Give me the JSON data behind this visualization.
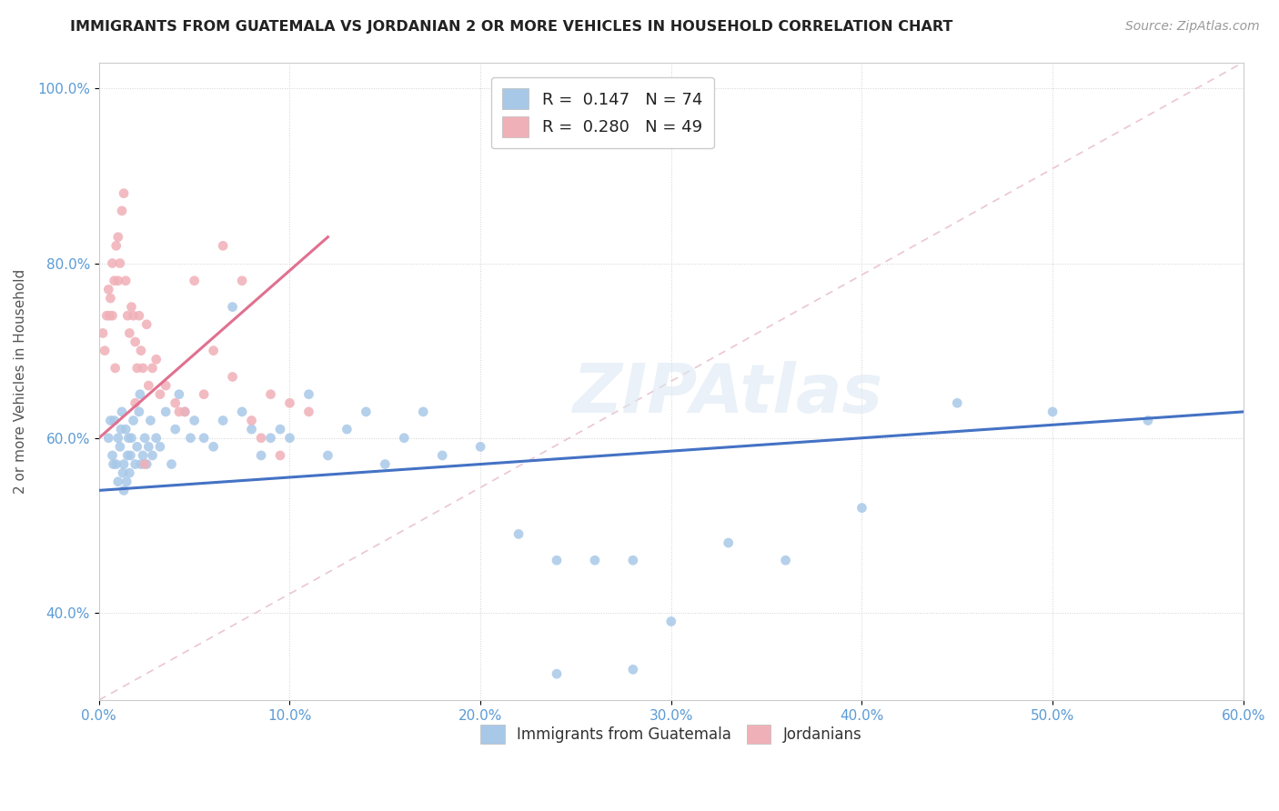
{
  "title": "IMMIGRANTS FROM GUATEMALA VS JORDANIAN 2 OR MORE VEHICLES IN HOUSEHOLD CORRELATION CHART",
  "source": "Source: ZipAtlas.com",
  "ylabel": "2 or more Vehicles in Household",
  "legend_label1": "Immigrants from Guatemala",
  "legend_label2": "Jordanians",
  "legend_R1": "R =  0.147",
  "legend_N1": "N = 74",
  "legend_R2": "R =  0.280",
  "legend_N2": "N = 49",
  "blue_color": "#a8c8e8",
  "pink_color": "#f0b0b8",
  "line_blue": "#4472c4",
  "line_pink": "#e07090",
  "line_diagonal": "#e8c0cc",
  "background": "#ffffff",
  "watermark": "ZIPAtlas",
  "blue_x": [
    0.5,
    0.7,
    0.8,
    0.9,
    1.0,
    1.0,
    1.1,
    1.2,
    1.3,
    1.3,
    1.4,
    1.5,
    1.6,
    1.7,
    1.8,
    1.9,
    2.0,
    2.1,
    2.2,
    2.3,
    2.4,
    2.5,
    2.6,
    2.7,
    2.8,
    3.0,
    3.2,
    3.5,
    3.8,
    4.0,
    4.2,
    4.5,
    4.8,
    5.0,
    5.5,
    6.0,
    6.5,
    7.0,
    7.5,
    8.0,
    8.5,
    9.0,
    9.5,
    10.0,
    11.0,
    12.0,
    13.0,
    14.0,
    15.0,
    16.0,
    17.0,
    18.0,
    20.0,
    22.0,
    24.0,
    26.0,
    28.0,
    30.0,
    33.0,
    36.0,
    40.0,
    45.0,
    50.0,
    55.0,
    24.0,
    28.0,
    0.6,
    0.75,
    1.15,
    1.25,
    1.45,
    1.55,
    1.65,
    2.15
  ],
  "blue_y": [
    60.0,
    58.0,
    62.0,
    57.0,
    60.0,
    55.0,
    59.0,
    63.0,
    57.0,
    54.0,
    61.0,
    58.0,
    56.0,
    60.0,
    62.0,
    57.0,
    59.0,
    63.0,
    57.0,
    58.0,
    60.0,
    57.0,
    59.0,
    62.0,
    58.0,
    60.0,
    59.0,
    63.0,
    57.0,
    61.0,
    65.0,
    63.0,
    60.0,
    62.0,
    60.0,
    59.0,
    62.0,
    75.0,
    63.0,
    61.0,
    58.0,
    60.0,
    61.0,
    60.0,
    65.0,
    58.0,
    61.0,
    63.0,
    57.0,
    60.0,
    63.0,
    58.0,
    59.0,
    49.0,
    46.0,
    46.0,
    46.0,
    39.0,
    48.0,
    46.0,
    52.0,
    64.0,
    63.0,
    62.0,
    33.0,
    33.5,
    62.0,
    57.0,
    61.0,
    56.0,
    55.0,
    60.0,
    58.0,
    65.0
  ],
  "pink_x": [
    0.2,
    0.3,
    0.4,
    0.5,
    0.6,
    0.7,
    0.7,
    0.8,
    0.9,
    1.0,
    1.0,
    1.1,
    1.2,
    1.3,
    1.4,
    1.5,
    1.6,
    1.7,
    1.8,
    1.9,
    2.0,
    2.1,
    2.2,
    2.3,
    2.5,
    2.8,
    3.0,
    3.5,
    4.0,
    4.5,
    5.0,
    5.5,
    6.0,
    6.5,
    7.0,
    7.5,
    8.0,
    8.5,
    9.0,
    9.5,
    10.0,
    11.0,
    3.2,
    4.2,
    2.6,
    1.9,
    2.4,
    0.85,
    0.55
  ],
  "pink_y": [
    72.0,
    70.0,
    74.0,
    77.0,
    76.0,
    80.0,
    74.0,
    78.0,
    82.0,
    83.0,
    78.0,
    80.0,
    86.0,
    88.0,
    78.0,
    74.0,
    72.0,
    75.0,
    74.0,
    71.0,
    68.0,
    74.0,
    70.0,
    68.0,
    73.0,
    68.0,
    69.0,
    66.0,
    64.0,
    63.0,
    78.0,
    65.0,
    70.0,
    82.0,
    67.0,
    78.0,
    62.0,
    60.0,
    65.0,
    58.0,
    64.0,
    63.0,
    65.0,
    63.0,
    66.0,
    64.0,
    57.0,
    68.0,
    74.0
  ],
  "xlim": [
    0,
    60
  ],
  "ylim": [
    30,
    103
  ],
  "xtick_vals": [
    0,
    10,
    20,
    30,
    40,
    50,
    60
  ],
  "ytick_vals": [
    40,
    60,
    80,
    100
  ],
  "blue_line_x": [
    0,
    60
  ],
  "blue_line_y": [
    54.0,
    63.0
  ],
  "pink_line_x": [
    0,
    12
  ],
  "pink_line_y": [
    60.0,
    83.0
  ],
  "diag_line_x": [
    0,
    60
  ],
  "diag_line_y": [
    30,
    103
  ]
}
